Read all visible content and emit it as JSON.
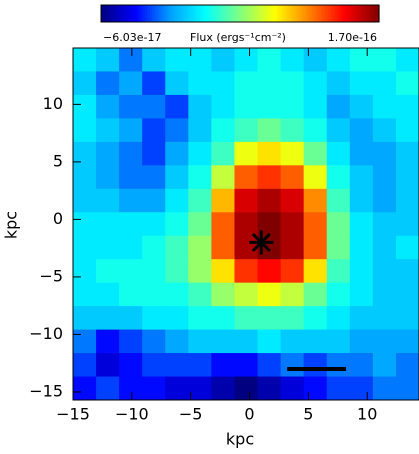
{
  "chart_data": {
    "type": "heatmap",
    "colorbar_label": "Flux (ergs⁻¹cm⁻²)",
    "clim": [
      -6.03e-17,
      1.7e-16
    ],
    "cticks": [
      {
        "value": -6.03e-17,
        "label": "−6.03e-17"
      },
      {
        "value": 1.7e-16,
        "label": "1.70e-16"
      }
    ],
    "colormap": [
      "#000080",
      "#0000ff",
      "#00a0ff",
      "#00ffff",
      "#80ff80",
      "#ffff00",
      "#ff8000",
      "#ff0000",
      "#800000"
    ],
    "x_label": "kpc",
    "y_label": "kpc",
    "xlim": [
      -15,
      14.4
    ],
    "ylim": [
      -15.7,
      14.9
    ],
    "xticks": [
      {
        "value": -15,
        "label": "−15"
      },
      {
        "value": -10,
        "label": "−10"
      },
      {
        "value": -5,
        "label": "−5"
      },
      0,
      5,
      10
    ],
    "yticks": [
      {
        "value": -15,
        "label": "−15"
      },
      {
        "value": -10,
        "label": "−10"
      },
      {
        "value": -5,
        "label": "−5"
      },
      0,
      5,
      10
    ],
    "values": [
      [
        2e-17,
        1e-17,
        -1e-17,
        1e-17,
        2e-17,
        2e-17,
        1e-17,
        2e-17,
        3e-17,
        2e-17,
        1e-17,
        2e-17,
        3e-17,
        3e-17,
        2e-17
      ],
      [
        1e-17,
        -1e-17,
        0,
        -2e-17,
        1e-17,
        2e-17,
        2e-17,
        3e-17,
        3e-17,
        3e-17,
        2e-17,
        1e-17,
        2e-17,
        2e-17,
        3e-17
      ],
      [
        2e-17,
        0,
        -1e-17,
        -1e-17,
        -2e-17,
        1e-17,
        2e-17,
        3e-17,
        3e-17,
        3e-17,
        2e-17,
        0,
        1e-17,
        2e-17,
        2e-17
      ],
      [
        2e-17,
        1e-17,
        0,
        -2e-17,
        -1e-17,
        1e-17,
        3e-17,
        4e-17,
        5e-17,
        4e-17,
        3e-17,
        1e-17,
        0,
        1e-17,
        2e-17
      ],
      [
        1e-17,
        0,
        -1e-17,
        -2e-17,
        0,
        2e-17,
        4e-17,
        8e-17,
        9e-17,
        8e-17,
        5e-17,
        2e-17,
        0,
        0,
        1e-17
      ],
      [
        1e-17,
        0,
        -1e-17,
        -1e-17,
        1e-17,
        3e-17,
        7e-17,
        1.2e-16,
        1.3e-16,
        1.2e-16,
        8e-17,
        3e-17,
        1e-17,
        0,
        1e-17
      ],
      [
        1e-17,
        1e-17,
        0,
        0,
        2e-17,
        4e-17,
        1e-16,
        1.5e-16,
        1.6e-16,
        1.5e-16,
        1.1e-16,
        4e-17,
        1e-17,
        0,
        1e-17
      ],
      [
        2e-17,
        2e-17,
        2e-17,
        2e-17,
        3e-17,
        5e-17,
        1.2e-16,
        1.6e-16,
        1.7e-16,
        1.6e-16,
        1.2e-16,
        5e-17,
        2e-17,
        1e-17,
        1e-17
      ],
      [
        2e-17,
        2e-17,
        2e-17,
        3e-17,
        4e-17,
        6e-17,
        1.2e-16,
        1.6e-16,
        1.7e-16,
        1.6e-16,
        1.2e-16,
        5e-17,
        2e-17,
        1e-17,
        2e-17
      ],
      [
        2e-17,
        3e-17,
        3e-17,
        3e-17,
        4e-17,
        6e-17,
        9e-17,
        1.3e-16,
        1.4e-16,
        1.3e-16,
        9e-17,
        4e-17,
        2e-17,
        1e-17,
        1e-17
      ],
      [
        2e-17,
        2e-17,
        3e-17,
        3e-17,
        3e-17,
        4e-17,
        6e-17,
        7e-17,
        8e-17,
        7e-17,
        5e-17,
        3e-17,
        2e-17,
        1e-17,
        1e-17
      ],
      [
        1e-17,
        1e-17,
        1e-17,
        2e-17,
        2e-17,
        3e-17,
        3e-17,
        4e-17,
        4e-17,
        4e-17,
        3e-17,
        2e-17,
        1e-17,
        1e-17,
        1e-17
      ],
      [
        -1e-17,
        -3e-17,
        -2e-17,
        -1e-17,
        0,
        1e-17,
        1e-17,
        1e-17,
        2e-17,
        1e-17,
        1e-17,
        1e-17,
        0,
        0,
        0
      ],
      [
        -2e-17,
        -4e-17,
        -3e-17,
        -2e-17,
        -2e-17,
        -2e-17,
        -3e-17,
        -3e-17,
        -2e-17,
        -1e-17,
        -2e-17,
        -1e-17,
        -1e-17,
        0,
        -1e-17
      ],
      [
        -3e-17,
        -2e-17,
        -3e-17,
        -3e-17,
        -4e-17,
        -4e-17,
        -5e-17,
        -6e-17,
        -5e-17,
        -4e-17,
        -3e-17,
        -2e-17,
        -2e-17,
        -1e-17,
        -1e-17
      ]
    ],
    "marker": {
      "x": 1,
      "y": -2
    },
    "scalebar": {
      "x": [
        3.2,
        8.2
      ],
      "y": -13
    }
  }
}
